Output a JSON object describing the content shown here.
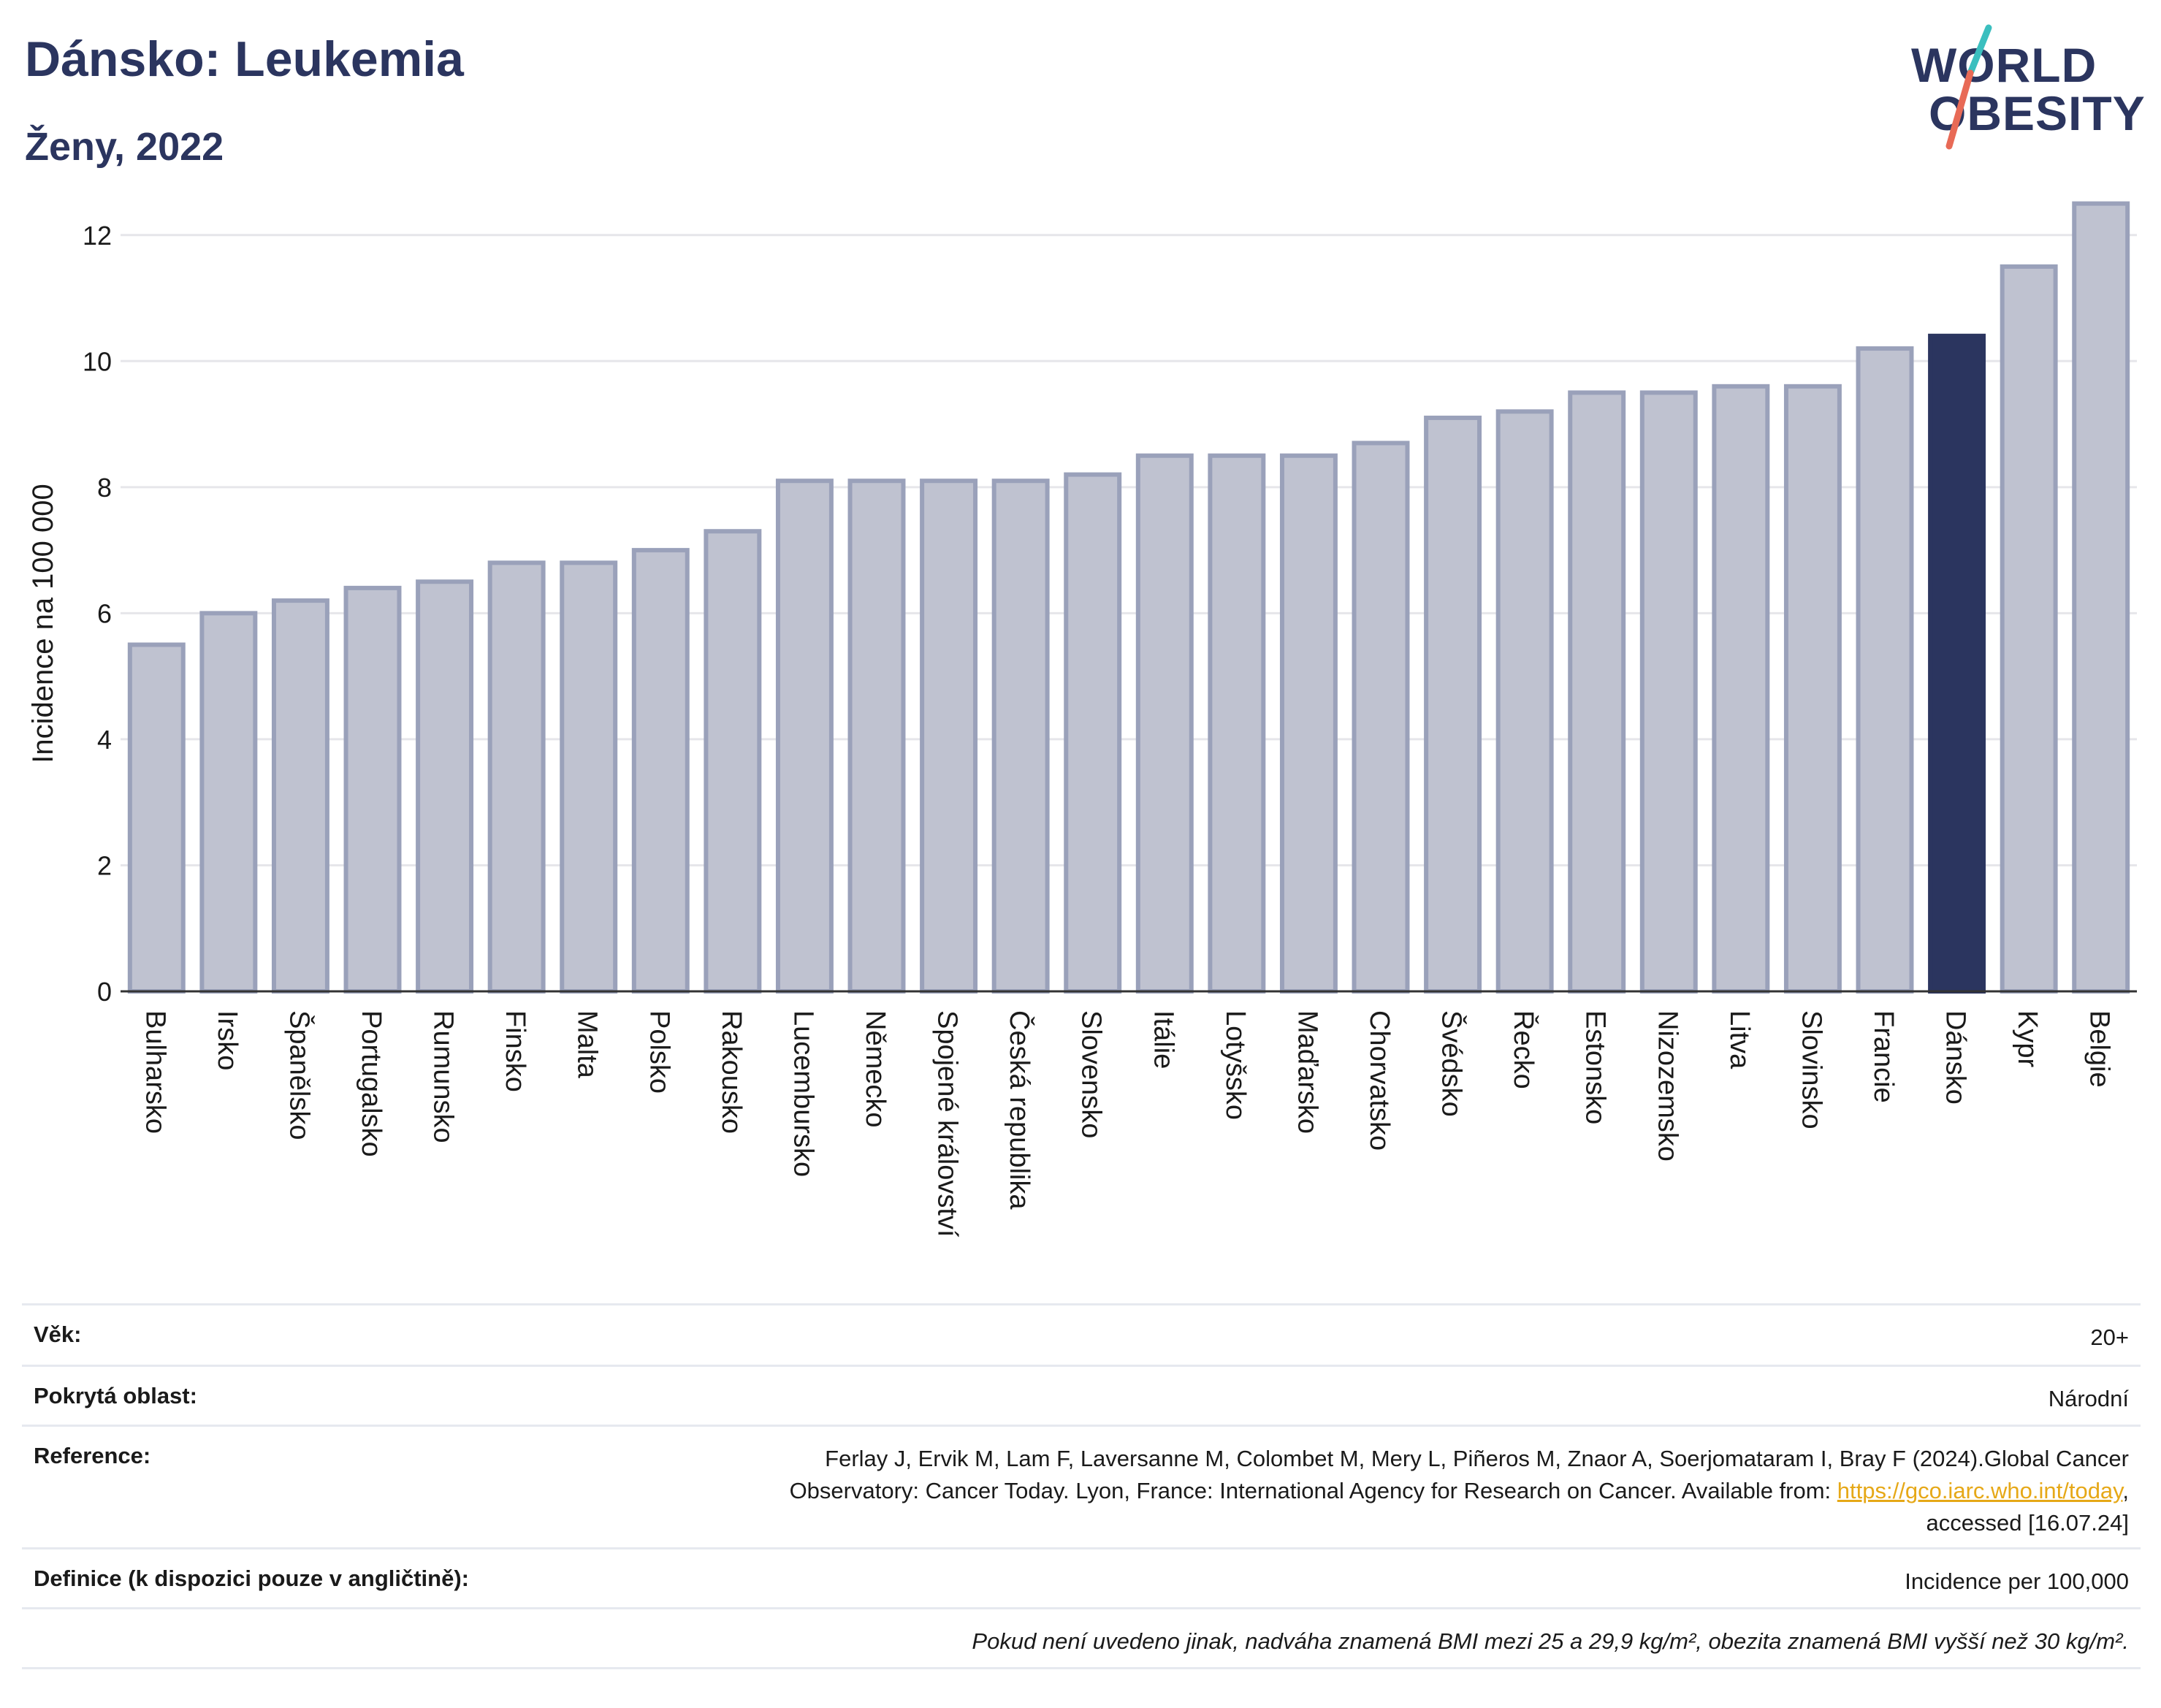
{
  "header": {
    "title": "Dánsko: Leukemia",
    "subtitle": "Ženy, 2022",
    "logo_line1": "WORLD",
    "logo_line2": "OBESITY"
  },
  "colors": {
    "bar": "#bfc2d0",
    "bar_border": "#9aa1ba",
    "highlight": "#2b355f",
    "axis": "#333333",
    "grid": "#e6e6ea",
    "logo_slash_top": "#3bbfbf",
    "logo_slash_bottom": "#e86a56"
  },
  "chart_data": {
    "type": "bar",
    "ylabel": "Incidence na 100 000",
    "ylim": [
      0,
      12.6
    ],
    "yticks": [
      0,
      2,
      4,
      6,
      8,
      10,
      12
    ],
    "grid": true,
    "highlight": "Dánsko",
    "categories": [
      "Bulharsko",
      "Irsko",
      "Španělsko",
      "Portugalsko",
      "Rumunsko",
      "Finsko",
      "Malta",
      "Polsko",
      "Rakousko",
      "Lucembursko",
      "Německo",
      "Spojené království",
      "Česká republika",
      "Slovensko",
      "Itálie",
      "Lotyšsko",
      "Maďarsko",
      "Chorvatsko",
      "Švédsko",
      "Řecko",
      "Estonsko",
      "Nizozemsko",
      "Litva",
      "Slovinsko",
      "Francie",
      "Dánsko",
      "Kypr",
      "Belgie"
    ],
    "values": [
      5.5,
      6.0,
      6.2,
      6.4,
      6.5,
      6.8,
      6.8,
      7.0,
      7.3,
      8.1,
      8.1,
      8.1,
      8.1,
      8.2,
      8.5,
      8.5,
      8.5,
      8.7,
      9.1,
      9.2,
      9.5,
      9.5,
      9.6,
      9.6,
      10.2,
      10.4,
      11.5,
      12.5
    ]
  },
  "meta": {
    "age_label": "Věk:",
    "age_value": "20+",
    "area_label": "Pokrytá oblast:",
    "area_value": "Národní",
    "ref_label": "Reference:",
    "ref_line1": "Ferlay J, Ervik M, Lam F, Laversanne M, Colombet M, Mery L, Piñeros M, Znaor A, Soerjomataram I, Bray F (2024).Global Cancer",
    "ref_line2_pre": "Observatory: Cancer Today. Lyon, France: International Agency for Research on Cancer. Available from: ",
    "ref_link": "https://gco.iarc.who.int/today",
    "ref_line2_post": ",",
    "ref_line3": "accessed [16.07.24]",
    "def_label": "Definice (k dispozici pouze v angličtině):",
    "def_value": "Incidence per 100,000",
    "note": "Pokud není uvedeno jinak, nadváha znamená BMI mezi 25 a 29,9 kg/m², obezita znamená BMI vyšší než 30 kg/m²."
  }
}
